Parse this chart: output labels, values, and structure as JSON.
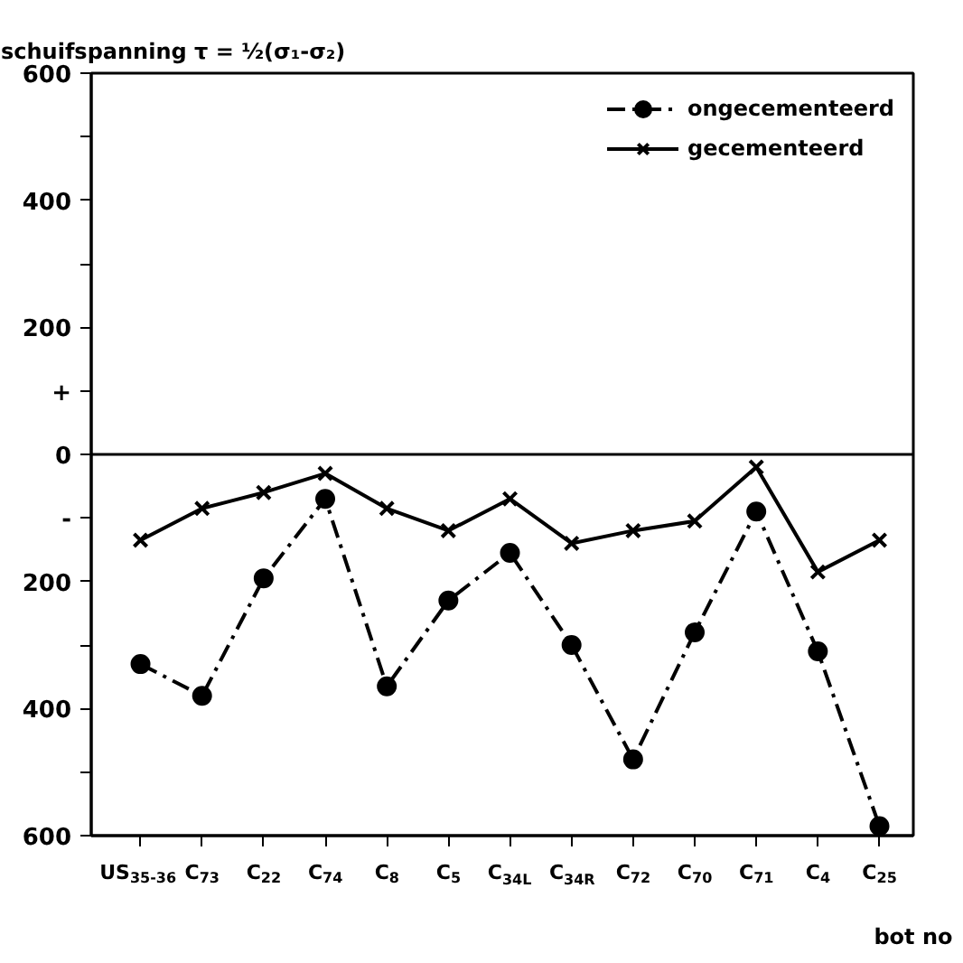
{
  "chart_data": {
    "type": "line",
    "title": "schuifspanning τ = ½(σ₁-σ₂)",
    "xlabel": "bot no",
    "categories": [
      "US$_{35-36}$",
      "C$_{73}$",
      "C$_{22}$",
      "C$_{74}$",
      "C$_{8}$",
      "C$_{5}$",
      "C$_{34L}$",
      "C$_{34R}$",
      "C$_{72}$",
      "C$_{70}$",
      "C$_{71}$",
      "C$_{4}$",
      "C$_{25}$"
    ],
    "series": [
      {
        "name": "ongecementeerd",
        "color": "#000000",
        "marker": "circle",
        "line_style": "dashdot",
        "values": [
          -330,
          -380,
          -195,
          -70,
          -365,
          -230,
          -155,
          -300,
          -480,
          -280,
          -90,
          -310,
          -585
        ]
      },
      {
        "name": "gecementeerd",
        "color": "#000000",
        "marker": "cross",
        "line_style": "solid",
        "values": [
          -135,
          -85,
          -60,
          -30,
          -85,
          -120,
          -70,
          -140,
          -120,
          -105,
          -20,
          -185,
          -135
        ]
      }
    ],
    "ylim": [
      -600,
      600
    ],
    "yticks": [
      {
        "value": -600,
        "label": "600"
      },
      {
        "value": -500,
        "label": null
      },
      {
        "value": -400,
        "label": "400"
      },
      {
        "value": -300,
        "label": null
      },
      {
        "value": -200,
        "label": "200"
      },
      {
        "value": -100,
        "label": "-"
      },
      0,
      {
        "value": 100,
        "label": "+"
      },
      200,
      {
        "value": 300,
        "label": null
      },
      400,
      {
        "value": 500,
        "label": null
      },
      600
    ],
    "ref_lines": [
      {
        "axis": "y",
        "value": 0
      }
    ],
    "legend": "top right",
    "grid": false
  }
}
